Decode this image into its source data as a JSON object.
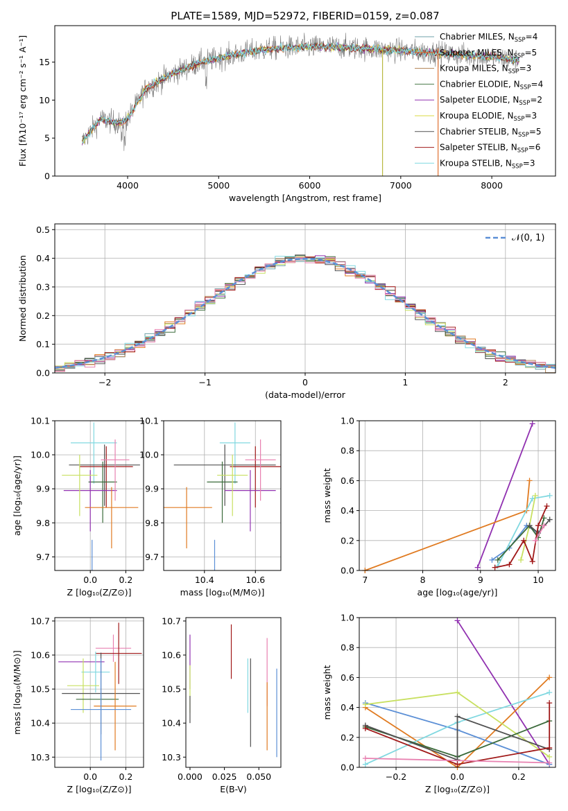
{
  "figure": {
    "title": "PLATE=1589, MJD=52972, FIBERID=0159, z=0.087"
  },
  "colors": {
    "chab_miles": "#6fa0a8",
    "salp_miles": "#e07030",
    "kroupa_miles": "#b08050",
    "chab_elodie": "#4a7a4a",
    "salp_elodie": "#9030b0",
    "kroupa_elodie": "#d8d840",
    "chab_stelib": "#505050",
    "salp_stelib": "#a01818",
    "kroupa_stelib": "#80d8e0",
    "normal": "#5b8fd6",
    "blue": "#5b8fd6",
    "orange": "#e07a20",
    "purple": "#9030b0",
    "dkgreen": "#3a6a3a",
    "ltgreen": "#c8e060",
    "gray": "#505050",
    "red": "#a01818",
    "cyan": "#80d8e0",
    "pink": "#e880b0",
    "grid": "#b0b0b0"
  },
  "chart_data": [
    {
      "id": "spectrum",
      "type": "line",
      "title": "PLATE=1589, MJD=52972, FIBERID=0159, z=0.087",
      "xlabel": "wavelength [Angstrom, rest frame]",
      "ylabel": "Flux [fλ10⁻¹⁷ erg cm⁻² s⁻¹ A⁻¹]",
      "xlim": [
        3200,
        8700
      ],
      "ylim": [
        0,
        19.8
      ],
      "xticks": [
        4000,
        5000,
        6000,
        7000,
        8000
      ],
      "yticks": [
        0,
        5,
        10,
        15
      ],
      "continuum": {
        "x": [
          3500,
          3700,
          3900,
          4000,
          4200,
          4500,
          4800,
          5000,
          5300,
          5600,
          6000,
          6300,
          6600,
          7000,
          7300,
          7600,
          8000,
          8300
        ],
        "y": [
          4.5,
          7.5,
          7.0,
          7.5,
          11.5,
          13.5,
          15.0,
          15.5,
          16.3,
          16.8,
          17.0,
          17.0,
          16.8,
          16.5,
          16.3,
          16.0,
          15.7,
          15.2
        ]
      },
      "legend": [
        {
          "label": "Chabrier MILES, N",
          "sub": "SSP",
          "tail": "=4",
          "color_key": "chab_miles"
        },
        {
          "label": "Salpeter MILES, N",
          "sub": "SSP",
          "tail": "=5",
          "color_key": "salp_miles"
        },
        {
          "label": "Kroupa MILES, N",
          "sub": "SSP",
          "tail": "=3",
          "color_key": "kroupa_miles"
        },
        {
          "label": "Chabrier ELODIE, N",
          "sub": "SSP",
          "tail": "=4",
          "color_key": "chab_elodie"
        },
        {
          "label": "Salpeter ELODIE, N",
          "sub": "SSP",
          "tail": "=2",
          "color_key": "salp_elodie"
        },
        {
          "label": "Kroupa ELODIE, N",
          "sub": "SSP",
          "tail": "=3",
          "color_key": "kroupa_elodie"
        },
        {
          "label": "Chabrier STELIB, N",
          "sub": "SSP",
          "tail": "=5",
          "color_key": "chab_stelib"
        },
        {
          "label": "Salpeter STELIB, N",
          "sub": "SSP",
          "tail": "=6",
          "color_key": "salp_stelib"
        },
        {
          "label": "Kroupa STELIB, N",
          "sub": "SSP",
          "tail": "=3",
          "color_key": "kroupa_stelib"
        }
      ],
      "legend_position": "right"
    },
    {
      "id": "residuals",
      "type": "line",
      "xlabel": "(data-model)/error",
      "ylabel": "Normed distribution",
      "xlim": [
        -2.5,
        2.5
      ],
      "ylim": [
        0,
        0.52
      ],
      "xticks": [
        -2,
        -1,
        0,
        1,
        2
      ],
      "xticklabels": [
        "−2",
        "−1",
        "0",
        "1",
        "2"
      ],
      "yticks": [
        0.0,
        0.1,
        0.2,
        0.3,
        0.4,
        0.5
      ],
      "yticklabels": [
        "0.0",
        "0.1",
        "0.2",
        "0.3",
        "0.4",
        "0.5"
      ],
      "legend": "𝒩(0, 1)",
      "legend_position": "top-right",
      "grid": true
    },
    {
      "id": "age_vs_Z",
      "type": "scatter",
      "xlabel": "Z [log₁₀(Z/Z⊙)]",
      "ylabel": "age  [log₁₀(age/yr)]",
      "xlim": [
        -0.2,
        0.3
      ],
      "ylim": [
        9.66,
        10.1
      ],
      "xticks": [
        0.0,
        0.2
      ],
      "xticklabels": [
        "0.0",
        "0.2"
      ],
      "yticks": [
        9.7,
        9.8,
        9.9,
        10.0,
        10.1
      ],
      "yticklabels": [
        "9.7",
        "9.8",
        "9.9",
        "10.0",
        "10.1"
      ],
      "points": [
        {
          "x": 0.02,
          "y": 10.035,
          "xerr": 0.13,
          "yerr": 0.0,
          "color_key": "cyan"
        },
        {
          "x": 0.08,
          "y": 9.97,
          "xerr": 0.2,
          "yerr": 0.0,
          "color_key": "gray"
        },
        {
          "x": 0.09,
          "y": 9.965,
          "xerr": 0.15,
          "yerr": 0.0,
          "color_key": "red"
        },
        {
          "x": 0.07,
          "y": 9.92,
          "xerr": 0.08,
          "yerr": 0.0,
          "color_key": "dkgreen"
        },
        {
          "x": 0.0,
          "y": 9.895,
          "xerr": 0.15,
          "yerr": 0.0,
          "color_key": "purple"
        },
        {
          "x": 0.12,
          "y": 9.845,
          "xerr": 0.15,
          "yerr": 0.0,
          "color_key": "orange"
        },
        {
          "x": -0.06,
          "y": 9.94,
          "xerr": 0.1,
          "yerr": 0.0,
          "color_key": "ltgreen"
        },
        {
          "x": 0.14,
          "y": 9.985,
          "xerr": 0.08,
          "yerr": 0.0,
          "color_key": "pink"
        },
        {
          "x": 0.01,
          "y": 9.69,
          "xerr": 0.0,
          "yerr": 0.0,
          "color_key": "blue"
        }
      ],
      "grid": true
    },
    {
      "id": "age_vs_mass",
      "type": "scatter",
      "xlabel": "mass [log₁₀(M/M⊙)]",
      "ylabel": "",
      "xlim": [
        10.24,
        10.7
      ],
      "ylim": [
        9.66,
        10.1
      ],
      "xticks": [
        10.4,
        10.6
      ],
      "xticklabels": [
        "10.4",
        "10.6"
      ],
      "yticks": [
        9.7,
        9.8,
        9.9,
        10.0,
        10.1
      ],
      "yticklabels": [
        "9.7",
        "9.8",
        "9.9",
        "10.0",
        "10.1"
      ],
      "points": [
        {
          "x": 10.52,
          "y": 10.035,
          "xerr": 0.06,
          "color_key": "cyan"
        },
        {
          "x": 10.48,
          "y": 9.97,
          "xerr": 0.2,
          "color_key": "gray"
        },
        {
          "x": 10.6,
          "y": 9.965,
          "xerr": 0.1,
          "color_key": "red"
        },
        {
          "x": 10.47,
          "y": 9.92,
          "xerr": 0.06,
          "color_key": "dkgreen"
        },
        {
          "x": 10.58,
          "y": 9.895,
          "xerr": 0.1,
          "color_key": "purple"
        },
        {
          "x": 10.33,
          "y": 9.845,
          "xerr": 0.1,
          "color_key": "orange"
        },
        {
          "x": 10.51,
          "y": 9.94,
          "xerr": 0.06,
          "color_key": "ltgreen"
        },
        {
          "x": 10.62,
          "y": 9.985,
          "xerr": 0.06,
          "color_key": "pink"
        },
        {
          "x": 10.44,
          "y": 9.69,
          "xerr": 0.0,
          "color_key": "blue"
        }
      ],
      "grid": true
    },
    {
      "id": "weight_vs_age",
      "type": "line",
      "xlabel": "age  [log₁₀(age/yr)]",
      "ylabel": "mass weight",
      "xlim": [
        6.9,
        10.3
      ],
      "ylim": [
        0,
        1.0
      ],
      "xticks": [
        7,
        8,
        9,
        10
      ],
      "xticklabels": [
        "7",
        "8",
        "9",
        "10"
      ],
      "yticks": [
        0.0,
        0.2,
        0.4,
        0.6,
        0.8,
        1.0
      ],
      "yticklabels": [
        "0.0",
        "0.2",
        "0.4",
        "0.6",
        "0.8",
        "1.0"
      ],
      "series": [
        {
          "color_key": "purple",
          "x": [
            8.95,
            9.9
          ],
          "y": [
            0.02,
            0.98
          ]
        },
        {
          "color_key": "orange",
          "x": [
            7.0,
            9.8,
            9.85
          ],
          "y": [
            0.0,
            0.4,
            0.6
          ]
        },
        {
          "color_key": "blue",
          "x": [
            9.2,
            9.5,
            9.8,
            10.0
          ],
          "y": [
            0.07,
            0.15,
            0.3,
            0.25
          ]
        },
        {
          "color_key": "cyan",
          "x": [
            9.3,
            9.9,
            10.2
          ],
          "y": [
            0.03,
            0.48,
            0.5
          ]
        },
        {
          "color_key": "ltgreen",
          "x": [
            9.7,
            9.85,
            9.95
          ],
          "y": [
            0.07,
            0.3,
            0.5
          ]
        },
        {
          "color_key": "dkgreen",
          "x": [
            9.3,
            9.85,
            10.0,
            10.1
          ],
          "y": [
            0.07,
            0.3,
            0.22,
            0.35
          ]
        },
        {
          "color_key": "gray",
          "x": [
            9.85,
            10.0,
            10.2
          ],
          "y": [
            0.3,
            0.25,
            0.34
          ]
        },
        {
          "color_key": "red",
          "x": [
            9.25,
            9.5,
            9.75,
            9.9,
            10.0,
            10.15
          ],
          "y": [
            0.02,
            0.04,
            0.2,
            0.06,
            0.3,
            0.43
          ]
        },
        {
          "color_key": "pink",
          "x": [
            9.95,
            10.1
          ],
          "y": [
            0.2,
            0.3
          ]
        }
      ],
      "grid": true
    },
    {
      "id": "mass_vs_Z",
      "type": "scatter",
      "xlabel": "Z [log₁₀(Z/Z⊙)]",
      "ylabel": "mass [log₁₀(M/M⊙)]",
      "xlim": [
        -0.2,
        0.3
      ],
      "ylim": [
        10.27,
        10.71
      ],
      "xticks": [
        0.0,
        0.2
      ],
      "xticklabels": [
        "0.0",
        "0.2"
      ],
      "yticks": [
        10.3,
        10.4,
        10.5,
        10.6,
        10.7
      ],
      "yticklabels": [
        "10.3",
        "10.4",
        "10.5",
        "10.6",
        "10.7"
      ],
      "points": [
        {
          "x": 0.13,
          "y": 10.62,
          "xerr": 0.1,
          "yerr": 0.04,
          "color_key": "pink"
        },
        {
          "x": 0.16,
          "y": 10.605,
          "xerr": 0.13,
          "yerr": 0.09,
          "color_key": "red"
        },
        {
          "x": -0.05,
          "y": 10.58,
          "xerr": 0.13,
          "yerr": 0.0,
          "color_key": "purple"
        },
        {
          "x": 0.03,
          "y": 10.55,
          "xerr": 0.08,
          "yerr": 0.06,
          "color_key": "cyan"
        },
        {
          "x": -0.04,
          "y": 10.51,
          "xerr": 0.09,
          "yerr": 0.08,
          "color_key": "ltgreen"
        },
        {
          "x": 0.06,
          "y": 10.487,
          "xerr": 0.22,
          "yerr": 0.12,
          "color_key": "gray"
        },
        {
          "x": 0.04,
          "y": 10.47,
          "xerr": 0.12,
          "yerr": 0.0,
          "color_key": "dkgreen"
        },
        {
          "x": 0.14,
          "y": 10.45,
          "xerr": 0.12,
          "yerr": 0.13,
          "color_key": "orange"
        },
        {
          "x": 0.06,
          "y": 10.44,
          "xerr": 0.17,
          "yerr": 0.15,
          "color_key": "blue"
        }
      ],
      "grid": true
    },
    {
      "id": "mass_vs_ebv",
      "type": "scatter",
      "xlabel": "E(B-V)",
      "ylabel": "",
      "xlim": [
        -0.003,
        0.066
      ],
      "ylim": [
        10.27,
        10.71
      ],
      "xticks": [
        0.0,
        0.025,
        0.05
      ],
      "xticklabels": [
        "0.000",
        "0.025",
        "0.050"
      ],
      "yticks": [
        10.3,
        10.4,
        10.5,
        10.6,
        10.7
      ],
      "yticklabels": [
        "10.3",
        "10.4",
        "10.5",
        "10.6",
        "10.7"
      ],
      "points": [
        {
          "x": 0.0,
          "y": 10.58,
          "yerr": 0.08,
          "color_key": "purple"
        },
        {
          "x": 0.0,
          "y": 10.5,
          "yerr": 0.07,
          "color_key": "ltgreen"
        },
        {
          "x": 0.0,
          "y": 10.44,
          "yerr": 0.04,
          "color_key": "gray"
        },
        {
          "x": 0.03,
          "y": 10.61,
          "yerr": 0.08,
          "color_key": "red"
        },
        {
          "x": 0.042,
          "y": 10.51,
          "yerr": 0.08,
          "color_key": "cyan"
        },
        {
          "x": 0.044,
          "y": 10.46,
          "yerr": 0.13,
          "color_key": "gray"
        },
        {
          "x": 0.056,
          "y": 10.55,
          "yerr": 0.1,
          "color_key": "pink"
        },
        {
          "x": 0.056,
          "y": 10.42,
          "yerr": 0.1,
          "color_key": "orange"
        },
        {
          "x": 0.063,
          "y": 10.43,
          "yerr": 0.13,
          "color_key": "blue"
        }
      ],
      "grid": false
    },
    {
      "id": "weight_vs_Z",
      "type": "line",
      "xlabel": "Z [log₁₀(Z/Z⊙)]",
      "ylabel": "mass weight",
      "xlim": [
        -0.32,
        0.32
      ],
      "ylim": [
        0,
        1.0
      ],
      "xticks": [
        -0.2,
        0.0,
        0.2
      ],
      "xticklabels": [
        "−0.2",
        "0.0",
        "0.2"
      ],
      "yticks": [
        0.0,
        0.2,
        0.4,
        0.6,
        0.8,
        1.0
      ],
      "yticklabels": [
        "0.0",
        "0.2",
        "0.4",
        "0.6",
        "0.8",
        "1.0"
      ],
      "series": [
        {
          "color_key": "purple",
          "x": [
            0.0,
            0.3
          ],
          "y": [
            0.98,
            0.02
          ]
        },
        {
          "color_key": "orange",
          "x": [
            -0.3,
            0.0,
            0.3
          ],
          "y": [
            0.4,
            0.0,
            0.6
          ]
        },
        {
          "color_key": "blue",
          "x": [
            -0.3,
            0.0,
            0.3
          ],
          "y": [
            0.43,
            0.25,
            0.02
          ]
        },
        {
          "color_key": "cyan",
          "x": [
            -0.3,
            0.0,
            0.3
          ],
          "y": [
            0.02,
            0.3,
            0.5
          ]
        },
        {
          "color_key": "ltgreen",
          "x": [
            -0.3,
            0.0,
            0.3
          ],
          "y": [
            0.42,
            0.5,
            0.07
          ]
        },
        {
          "color_key": "dkgreen",
          "x": [
            -0.3,
            0.0,
            0.3
          ],
          "y": [
            0.27,
            0.07,
            0.31
          ]
        },
        {
          "color_key": "gray",
          "x": [
            -0.3,
            0.0,
            0.0,
            0.3
          ],
          "y": [
            0.28,
            0.05,
            0.34,
            0.12
          ]
        },
        {
          "color_key": "red",
          "x": [
            -0.3,
            0.0,
            0.3,
            0.3
          ],
          "y": [
            0.26,
            0.02,
            0.13,
            0.43
          ]
        },
        {
          "color_key": "pink",
          "x": [
            -0.3,
            0.3
          ],
          "y": [
            0.06,
            0.03
          ]
        }
      ],
      "grid": true
    }
  ]
}
